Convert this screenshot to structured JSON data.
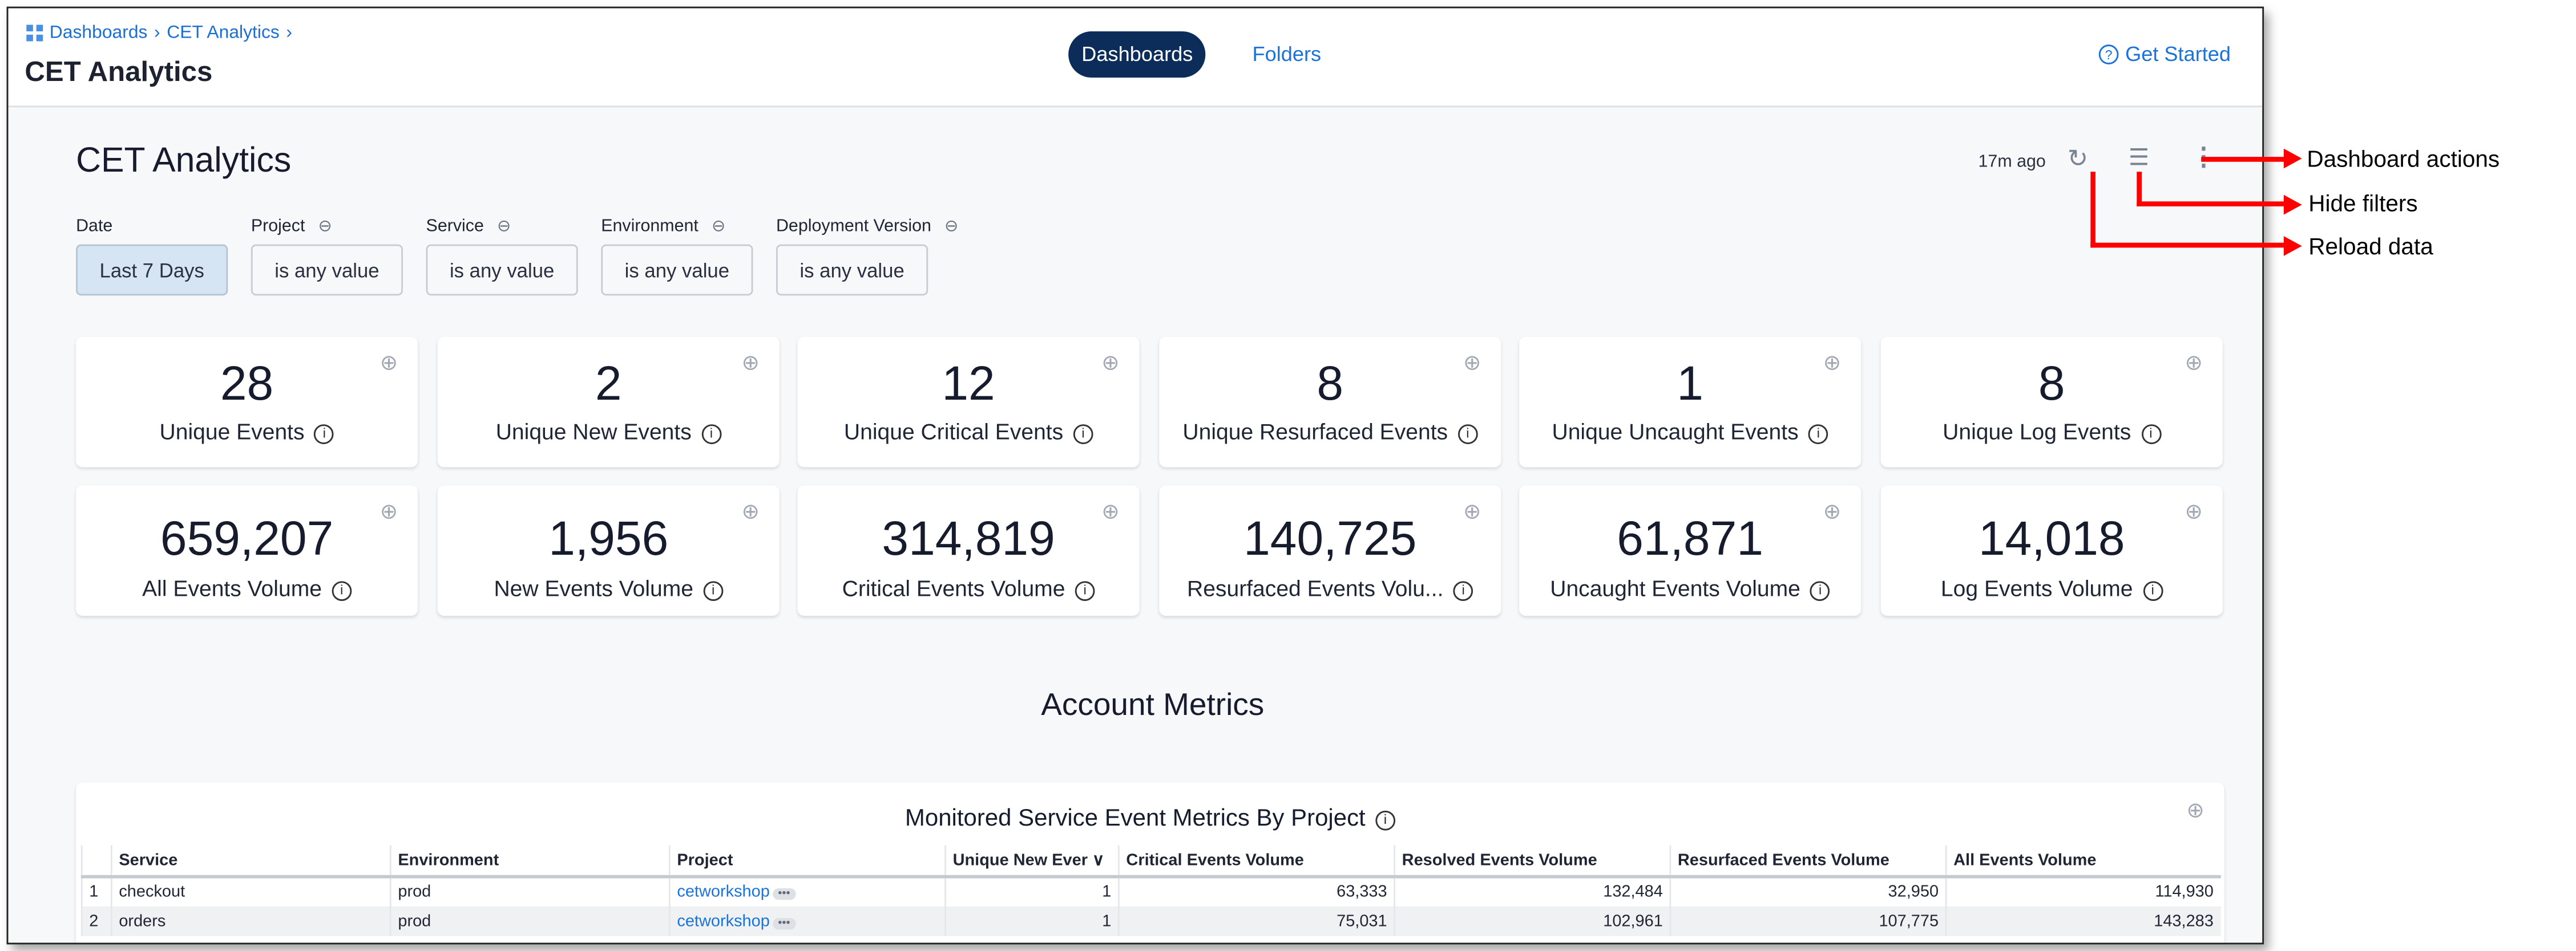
{
  "breadcrumb": [
    "Dashboards",
    "CET Analytics"
  ],
  "header": {
    "title": "CET Analytics",
    "tabs": [
      "Dashboards",
      "Folders"
    ],
    "active_tab": "Dashboards",
    "get_started": "Get Started"
  },
  "dashboard": {
    "title": "CET Analytics",
    "last_updated": "17m ago"
  },
  "filters": [
    {
      "label": "Date",
      "value": "Last 7 Days"
    },
    {
      "label": "Project",
      "value": "is any value"
    },
    {
      "label": "Service",
      "value": "is any value"
    },
    {
      "label": "Environment",
      "value": "is any value"
    },
    {
      "label": "Deployment Version",
      "value": "is any value"
    }
  ],
  "tiles_row1": [
    {
      "value": "28",
      "label": "Unique Events"
    },
    {
      "value": "2",
      "label": "Unique New Events"
    },
    {
      "value": "12",
      "label": "Unique Critical Events"
    },
    {
      "value": "8",
      "label": "Unique Resurfaced Events"
    },
    {
      "value": "1",
      "label": "Unique Uncaught Events"
    },
    {
      "value": "8",
      "label": "Unique Log Events"
    }
  ],
  "tiles_row2": [
    {
      "value": "659,207",
      "label": "All Events Volume"
    },
    {
      "value": "1,956",
      "label": "New Events Volume"
    },
    {
      "value": "314,819",
      "label": "Critical Events Volume"
    },
    {
      "value": "140,725",
      "label": "Resurfaced Events Volu..."
    },
    {
      "value": "61,871",
      "label": "Uncaught Events Volume"
    },
    {
      "value": "14,018",
      "label": "Log Events Volume"
    }
  ],
  "section": {
    "title": "Account Metrics"
  },
  "table": {
    "title": "Monitored Service Event Metrics By Project",
    "columns": [
      "Service",
      "Environment",
      "Project",
      "Unique New Ever ∨",
      "Critical Events Volume",
      "Resolved Events Volume",
      "Resurfaced Events Volume",
      "All Events Volume"
    ],
    "rows": [
      [
        "1",
        "checkout",
        "prod",
        "cetworkshop",
        "1",
        "63,333",
        "132,484",
        "32,950",
        "114,930"
      ],
      [
        "2",
        "orders",
        "prod",
        "cetworkshop",
        "1",
        "75,031",
        "102,961",
        "107,775",
        "143,283"
      ]
    ]
  },
  "annotations": [
    "Dashboard actions",
    "Hide filters",
    "Reload data"
  ],
  "colors": {
    "accent": "#1a73d9",
    "active_tab": "#0c2d5a",
    "annotation": "#ff0000"
  }
}
